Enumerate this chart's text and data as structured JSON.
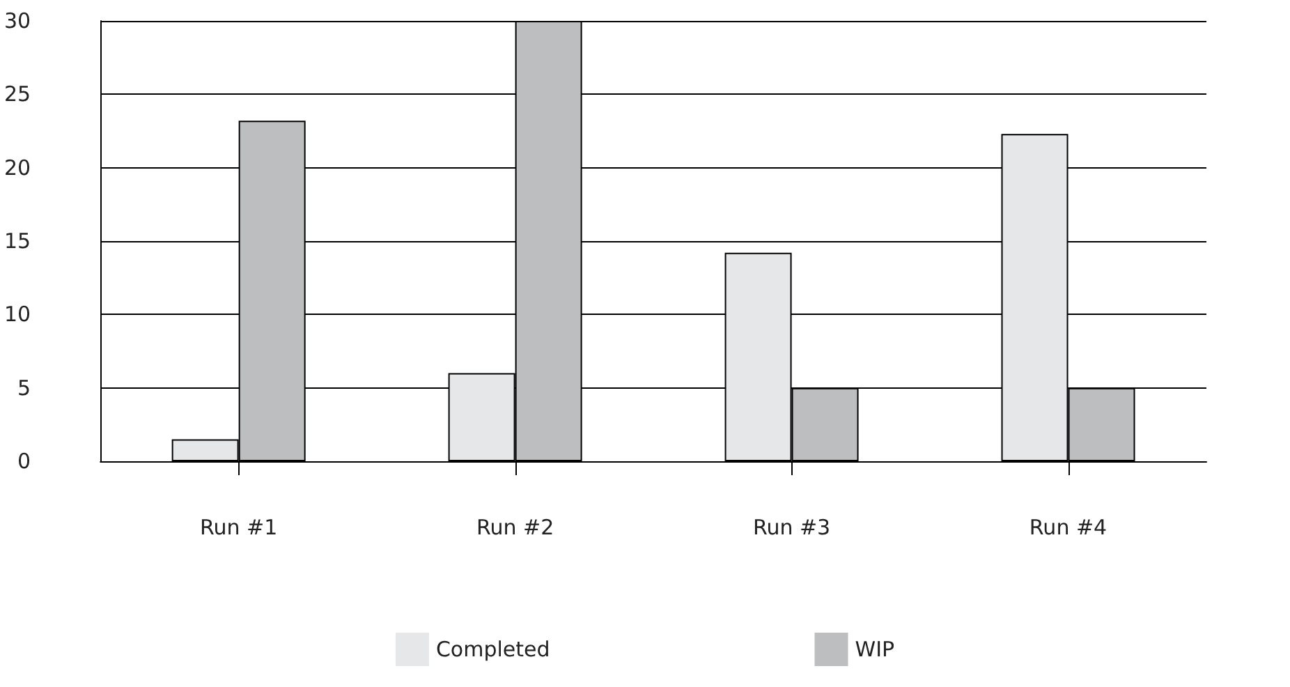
{
  "chart_data": {
    "type": "bar",
    "categories": [
      "Run #1",
      "Run #2",
      "Run #3",
      "Run #4"
    ],
    "series": [
      {
        "name": "Completed",
        "color": "#e6e7e8",
        "values": [
          1.5,
          6,
          14.2,
          22.3
        ]
      },
      {
        "name": "WIP",
        "color": "#bcbec0",
        "values": [
          23.2,
          30,
          5,
          5
        ]
      }
    ],
    "ylim": [
      0,
      30
    ],
    "yticks": [
      0,
      5,
      10,
      15,
      20,
      25,
      30
    ],
    "grid": "y",
    "legend": "bottom"
  }
}
